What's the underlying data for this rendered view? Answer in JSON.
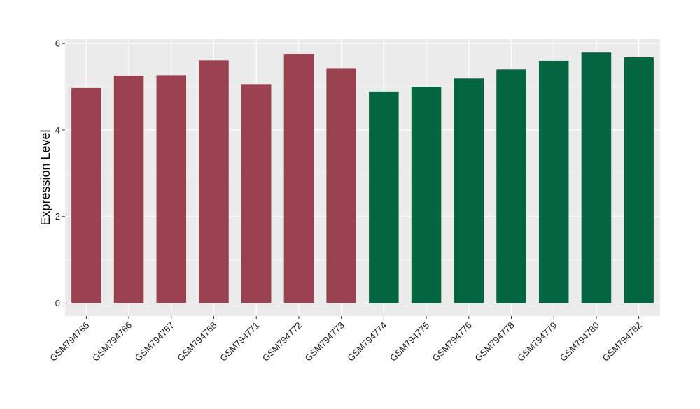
{
  "chart_data": {
    "type": "bar",
    "title": "",
    "xlabel": "",
    "ylabel": "Expression Level",
    "categories": [
      "GSM794765",
      "GSM794766",
      "GSM794767",
      "GSM794768",
      "GSM794771",
      "GSM794772",
      "GSM794773",
      "GSM794774",
      "GSM794775",
      "GSM794776",
      "GSM794778",
      "GSM794779",
      "GSM794780",
      "GSM794782"
    ],
    "values": [
      4.97,
      5.26,
      5.27,
      5.61,
      5.06,
      5.76,
      5.43,
      4.89,
      5.0,
      5.19,
      5.4,
      5.6,
      5.79,
      5.68
    ],
    "bar_colors": [
      "#9a4150",
      "#9a4150",
      "#9a4150",
      "#9a4150",
      "#9a4150",
      "#9a4150",
      "#9a4150",
      "#036641",
      "#036641",
      "#036641",
      "#036641",
      "#036641",
      "#036641",
      "#036641"
    ],
    "ylim": [
      -0.3,
      6.1
    ],
    "yticks": [
      0,
      2,
      4,
      6
    ],
    "grid": true,
    "panel_background": "#ebebeb",
    "gridline_color": "#ffffff"
  }
}
